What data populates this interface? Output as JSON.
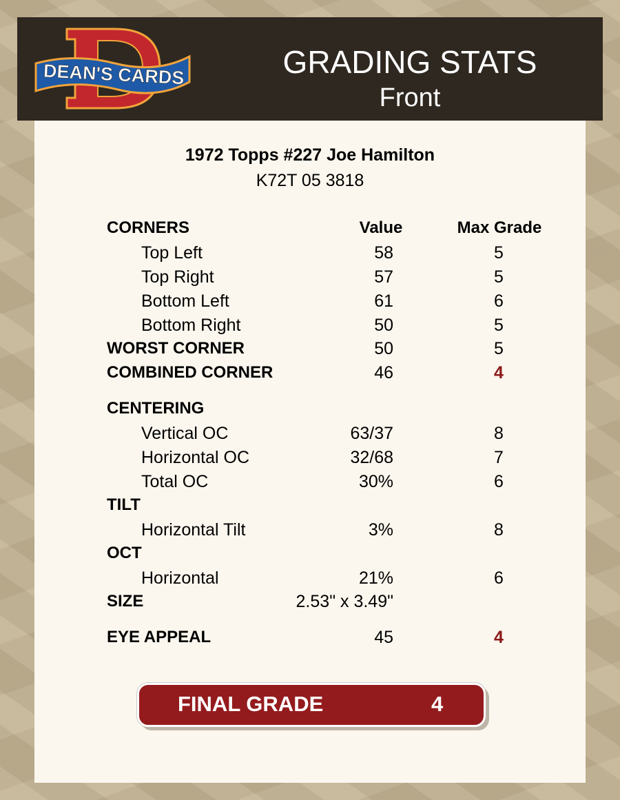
{
  "header": {
    "logo_text": "DEAN'S CARDS",
    "title": "GRADING STATS",
    "subtitle": "Front"
  },
  "card": {
    "name": "1972 Topps #227 Joe Hamilton",
    "code": "K72T 05 3818"
  },
  "columns": {
    "value": "Value",
    "max_grade": "Max Grade"
  },
  "rows": [
    {
      "label": "CORNERS"
    },
    {
      "label": "Top Left",
      "value": "58",
      "max": "5"
    },
    {
      "label": "Top Right",
      "value": "57",
      "max": "5"
    },
    {
      "label": "Bottom Left",
      "value": "61",
      "max": "6"
    },
    {
      "label": "Bottom Right",
      "value": "50",
      "max": "5"
    },
    {
      "label": "WORST CORNER",
      "value": "50",
      "max": "5"
    },
    {
      "label": "COMBINED CORNER",
      "value": "46",
      "max": "4"
    },
    {
      "label": "CENTERING"
    },
    {
      "label": "Vertical OC",
      "value": "63/37",
      "max": "8"
    },
    {
      "label": "Horizontal OC",
      "value": "32/68",
      "max": "7"
    },
    {
      "label": "Total OC",
      "value": "30%",
      "max": "6"
    },
    {
      "label": "TILT"
    },
    {
      "label": "Horizontal Tilt",
      "value": "3%",
      "max": "8"
    },
    {
      "label": "OCT"
    },
    {
      "label": "Horizontal",
      "value": "21%",
      "max": "6"
    },
    {
      "label": "SIZE",
      "value": "2.53\" x 3.49\""
    },
    {
      "label": "EYE APPEAL",
      "value": "45",
      "max": "4"
    }
  ],
  "final": {
    "label": "FINAL GRADE",
    "value": "4"
  },
  "colors": {
    "header_bg": "#2e2820",
    "accent_red": "#941b1d",
    "panel_bg": "#fcf7ee"
  }
}
